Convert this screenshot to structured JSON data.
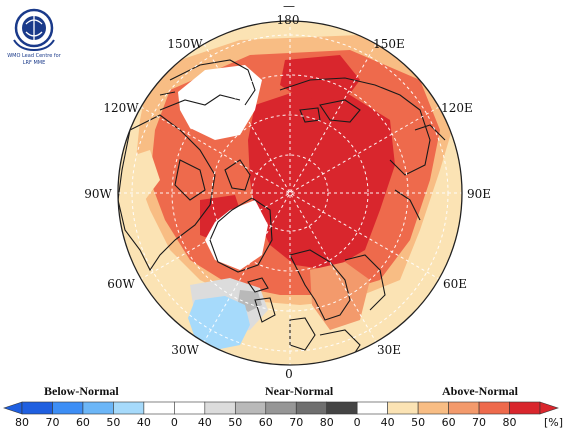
{
  "logo": {
    "text_line1": "WMO Lead Centre for",
    "text_line2": "LRF MME"
  },
  "map": {
    "top_small": "—",
    "longitude_labels": {
      "deg180": "180",
      "w150": "150W",
      "e150": "150E",
      "w120": "120W",
      "e120": "120E",
      "w90": "90W",
      "e90": "90E",
      "w60": "60W",
      "e60": "60E",
      "w30": "30W",
      "e30": "30E",
      "deg0": "0"
    }
  },
  "legend": {
    "below_label": "Below-Normal",
    "near_label": "Near-Normal",
    "above_label": "Above-Normal",
    "tick_labels": [
      "80",
      "70",
      "60",
      "50",
      "40",
      "0",
      "40",
      "50",
      "60",
      "70",
      "80",
      "0",
      "40",
      "50",
      "60",
      "70",
      "80"
    ],
    "unit": "[%]",
    "colors": [
      "#1f5fe0",
      "#3d8ef5",
      "#6cb6f7",
      "#a6dafb",
      "#ffffff",
      "#ffffff",
      "#dcdcdc",
      "#b9b9b9",
      "#969696",
      "#6f6f6f",
      "#444444",
      "#ffffff",
      "#fbe3b4",
      "#f8bd84",
      "#f39a6c",
      "#ee6a4c",
      "#d9262d"
    ]
  }
}
